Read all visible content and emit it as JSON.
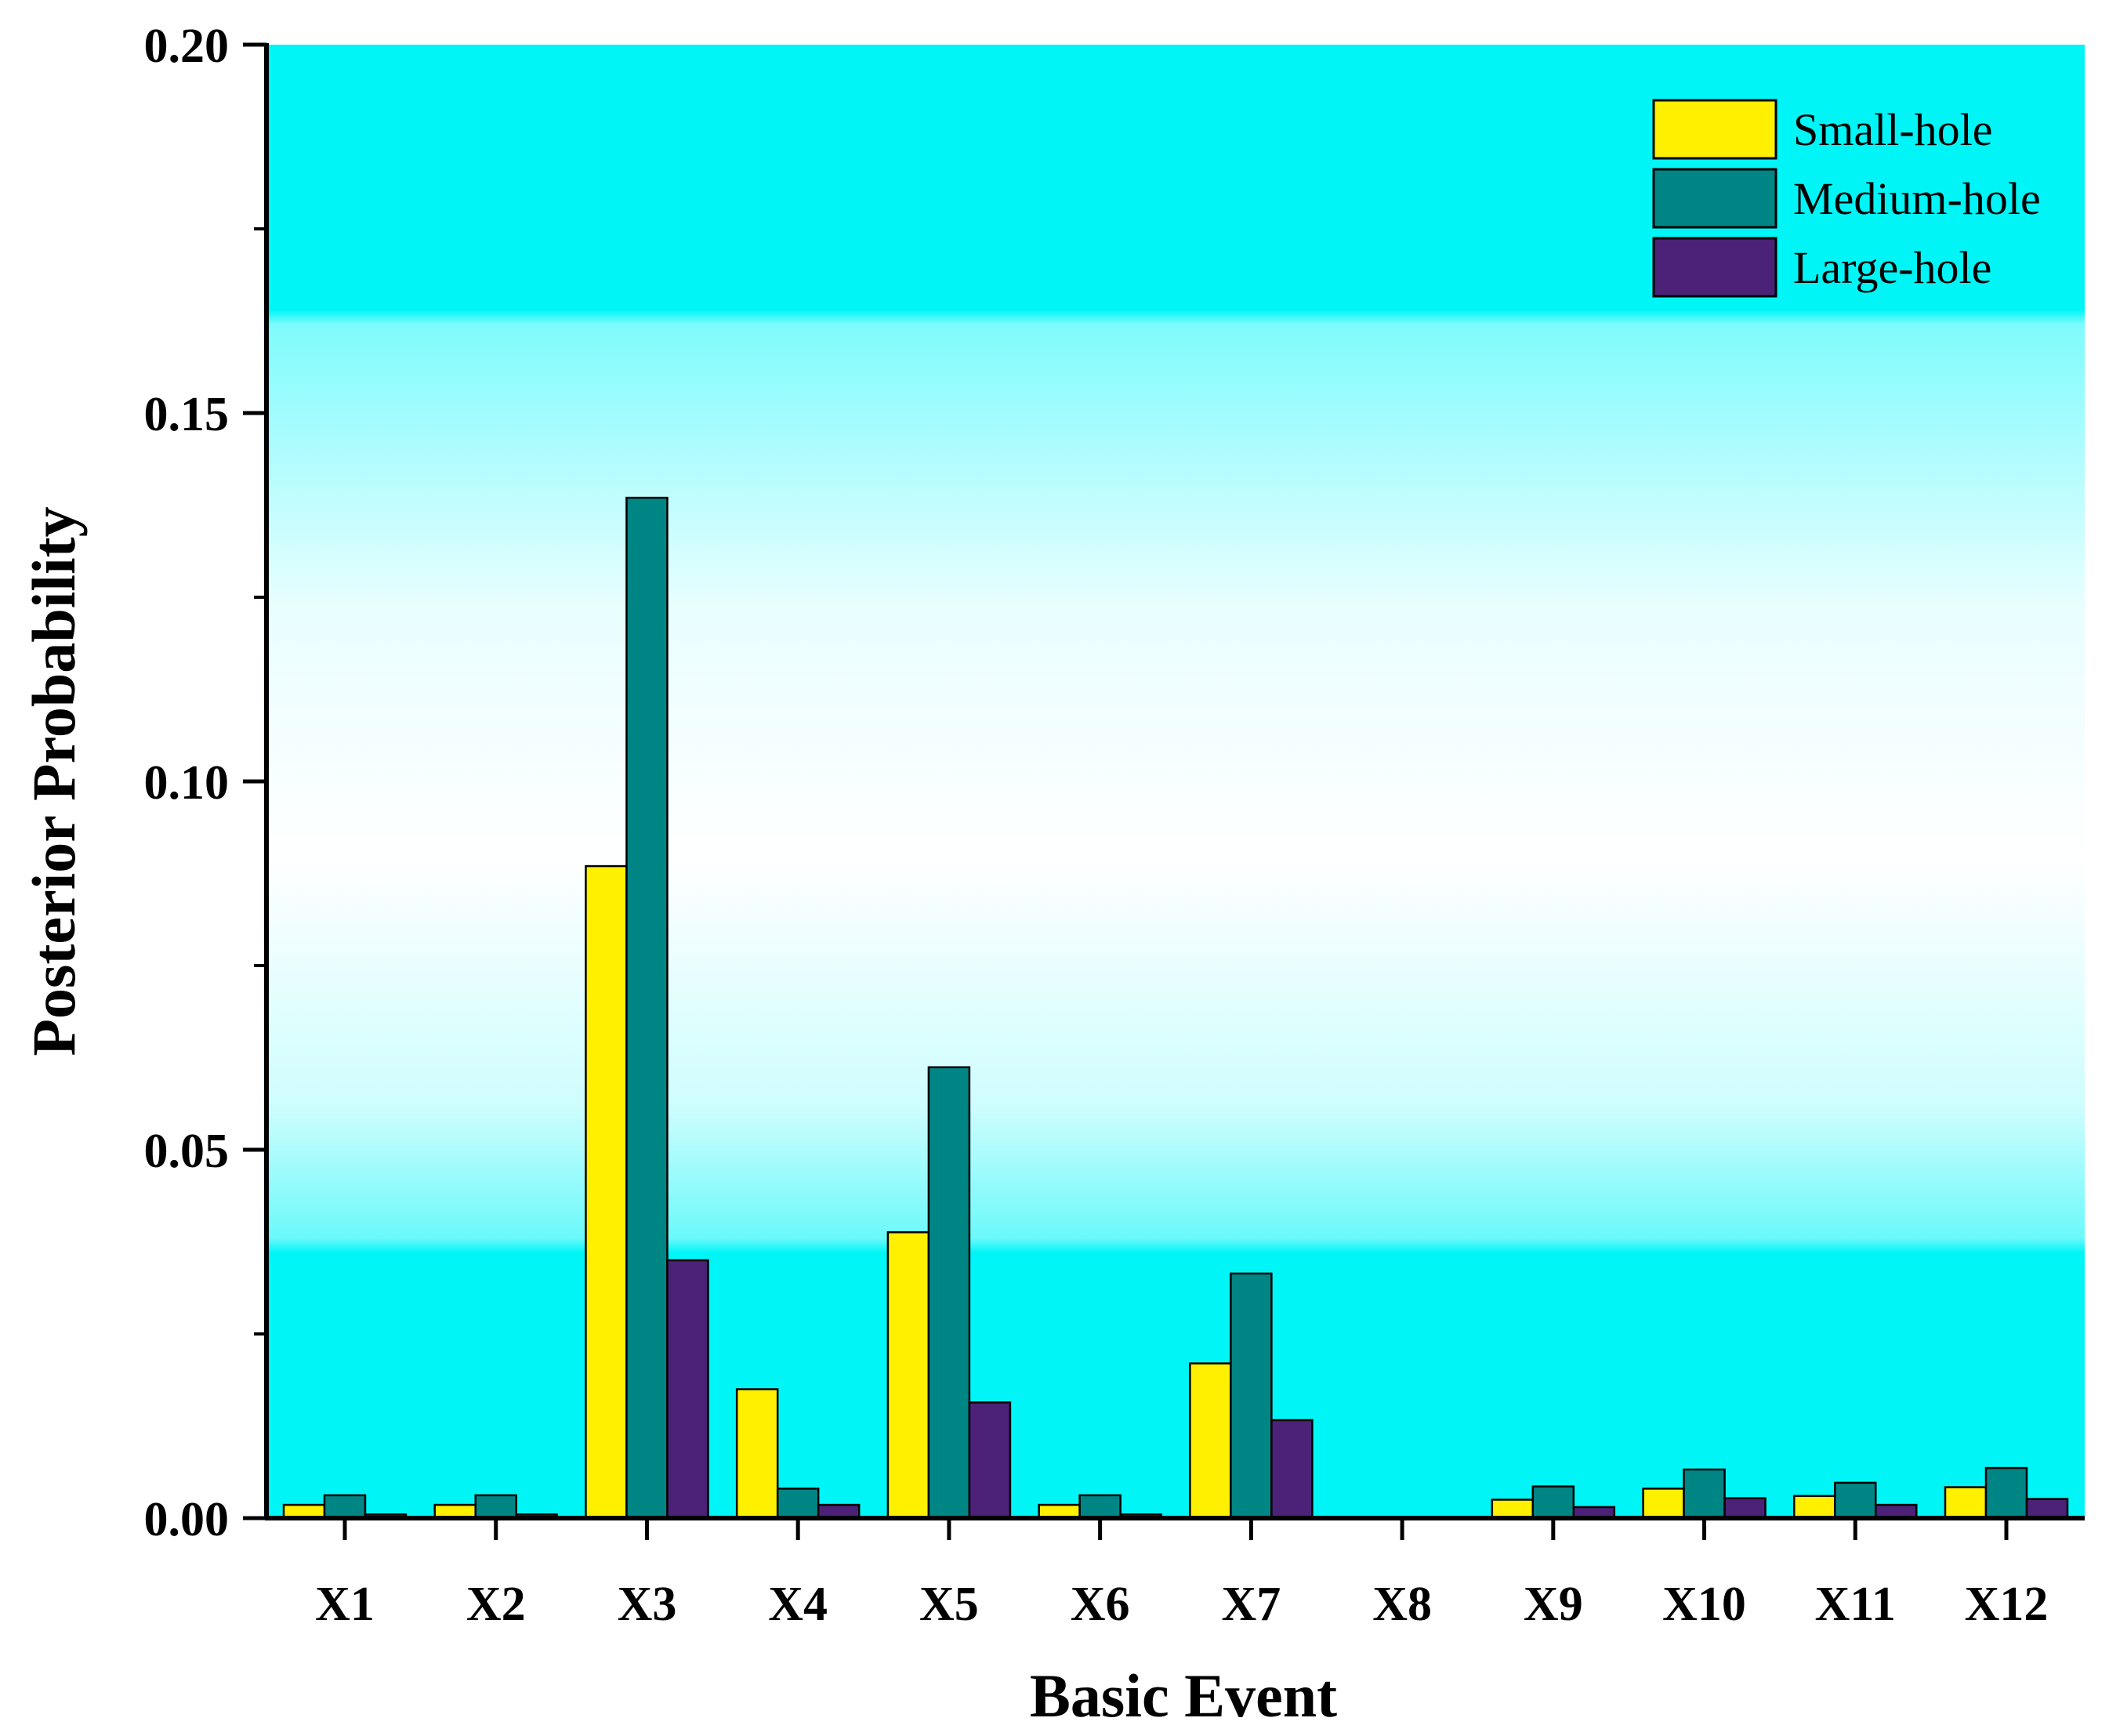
{
  "chart_data": {
    "type": "bar",
    "title": "",
    "xlabel": "Basic Event",
    "ylabel": "Posterior Probability",
    "ylim": [
      0,
      0.2
    ],
    "yticks": [
      "0.00",
      "0.05",
      "0.10",
      "0.15",
      "0.20"
    ],
    "categories": [
      "X1",
      "X2",
      "X3",
      "X4",
      "X5",
      "X6",
      "X7",
      "X8",
      "X9",
      "X10",
      "X11",
      "X12"
    ],
    "series": [
      {
        "name": "Small-hole",
        "color": "#FFF000",
        "values": [
          0.0018,
          0.0018,
          0.0885,
          0.0175,
          0.0388,
          0.0018,
          0.021,
          0.0,
          0.0025,
          0.004,
          0.003,
          0.0042
        ]
      },
      {
        "name": "Medium-hole",
        "color": "#008585",
        "values": [
          0.0031,
          0.0031,
          0.1385,
          0.004,
          0.0612,
          0.0031,
          0.0332,
          0.0,
          0.0043,
          0.0066,
          0.0048,
          0.0068
        ]
      },
      {
        "name": "Large-hole",
        "color": "#4B2277",
        "values": [
          0.0005,
          0.0005,
          0.035,
          0.0018,
          0.0157,
          0.0005,
          0.0133,
          0.0,
          0.0015,
          0.0027,
          0.0018,
          0.0026
        ]
      }
    ],
    "legend_position": "top-right",
    "grid": false,
    "background": "cyan-white vertical gradient"
  }
}
